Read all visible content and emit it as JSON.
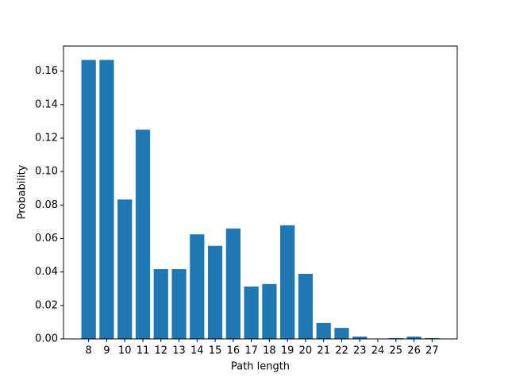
{
  "chart_data": {
    "type": "bar",
    "x": [
      8,
      9,
      10,
      11,
      12,
      13,
      14,
      15,
      16,
      17,
      18,
      19,
      20,
      21,
      22,
      23,
      24,
      25,
      26,
      27
    ],
    "values": [
      0.1667,
      0.1667,
      0.0833,
      0.125,
      0.0417,
      0.0417,
      0.0625,
      0.0556,
      0.066,
      0.0313,
      0.0328,
      0.0679,
      0.0389,
      0.0095,
      0.0066,
      0.0014,
      0,
      0.0005,
      0.0014,
      0.0005
    ],
    "color": "#1f77b4",
    "xlabel": "Path length",
    "ylabel": "Probability",
    "xlim": [
      6.61,
      28.39
    ],
    "xticks": [
      8,
      9,
      10,
      11,
      12,
      13,
      14,
      15,
      16,
      17,
      18,
      19,
      20,
      21,
      22,
      23,
      24,
      25,
      26,
      27
    ],
    "ylim": [
      0,
      0.175
    ],
    "yticks": [
      {
        "value": 0,
        "label": "0.00"
      },
      {
        "value": 0.02,
        "label": "0.02"
      },
      {
        "value": 0.04,
        "label": "0.04"
      },
      {
        "value": 0.06,
        "label": "0.06"
      },
      {
        "value": 0.08,
        "label": "0.08"
      },
      {
        "value": 0.1,
        "label": "0.10"
      },
      {
        "value": 0.12,
        "label": "0.12"
      },
      {
        "value": 0.14,
        "label": "0.14"
      },
      {
        "value": 0.16,
        "label": "0.16"
      }
    ]
  }
}
